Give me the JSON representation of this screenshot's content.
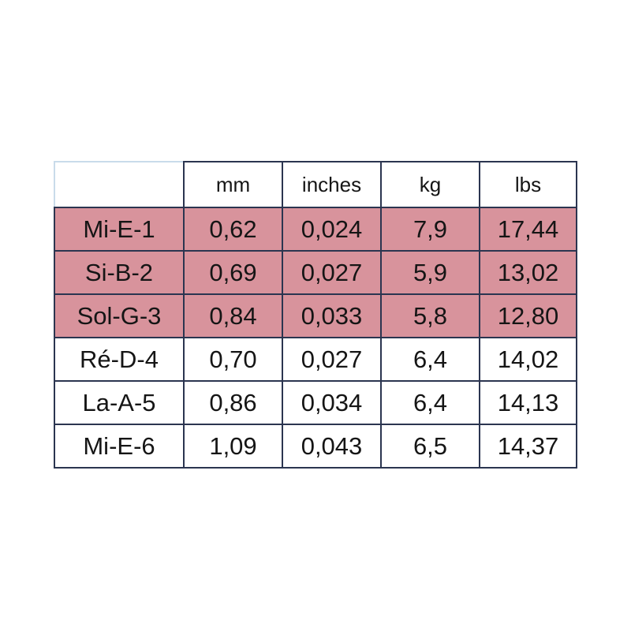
{
  "table": {
    "columns": [
      "mm",
      "inches",
      "kg",
      "lbs"
    ],
    "highlight_color": "#d8939c",
    "rows": [
      {
        "label": "Mi-E-1",
        "cells": [
          "0,62",
          "0,024",
          "7,9",
          "17,44"
        ],
        "highlighted": true
      },
      {
        "label": "Si-B-2",
        "cells": [
          "0,69",
          "0,027",
          "5,9",
          "13,02"
        ],
        "highlighted": true
      },
      {
        "label": "Sol-G-3",
        "cells": [
          "0,84",
          "0,033",
          "5,8",
          "12,80"
        ],
        "highlighted": true
      },
      {
        "label": "Ré-D-4",
        "cells": [
          "0,70",
          "0,027",
          "6,4",
          "14,02"
        ],
        "highlighted": false
      },
      {
        "label": "La-A-5",
        "cells": [
          "0,86",
          "0,034",
          "6,4",
          "14,13"
        ],
        "highlighted": false
      },
      {
        "label": "Mi-E-6",
        "cells": [
          "1,09",
          "0,043",
          "6,5",
          "14,37"
        ],
        "highlighted": false
      }
    ]
  }
}
